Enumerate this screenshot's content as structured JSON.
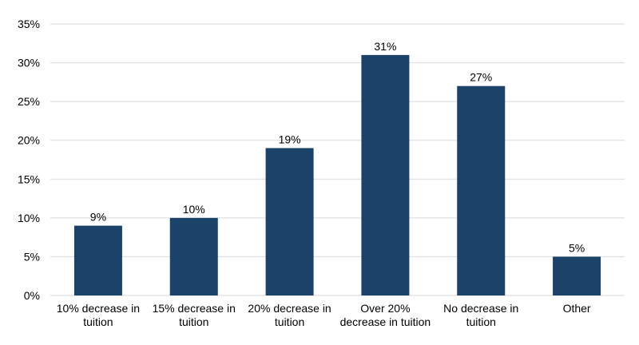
{
  "chart_data": {
    "type": "bar",
    "categories": [
      [
        "10% decrease in",
        "tuition"
      ],
      [
        "15% decrease in",
        "tuition"
      ],
      [
        "20% decrease in",
        "tuition"
      ],
      [
        "Over 20%",
        "decrease in tuition"
      ],
      [
        "No decrease in",
        "tuition"
      ],
      [
        "Other"
      ]
    ],
    "values": [
      9,
      10,
      19,
      31,
      27,
      5
    ],
    "data_labels": [
      "9%",
      "10%",
      "19%",
      "31%",
      "27%",
      "5%"
    ],
    "title": "",
    "xlabel": "",
    "ylabel": "",
    "ylim": [
      0,
      35
    ],
    "yticks": [
      0,
      5,
      10,
      15,
      20,
      25,
      30,
      35
    ],
    "ytick_labels": [
      "0%",
      "5%",
      "10%",
      "15%",
      "20%",
      "25%",
      "30%",
      "35%"
    ],
    "grid": true,
    "legend": "none",
    "bar_color": "#1b4268"
  }
}
